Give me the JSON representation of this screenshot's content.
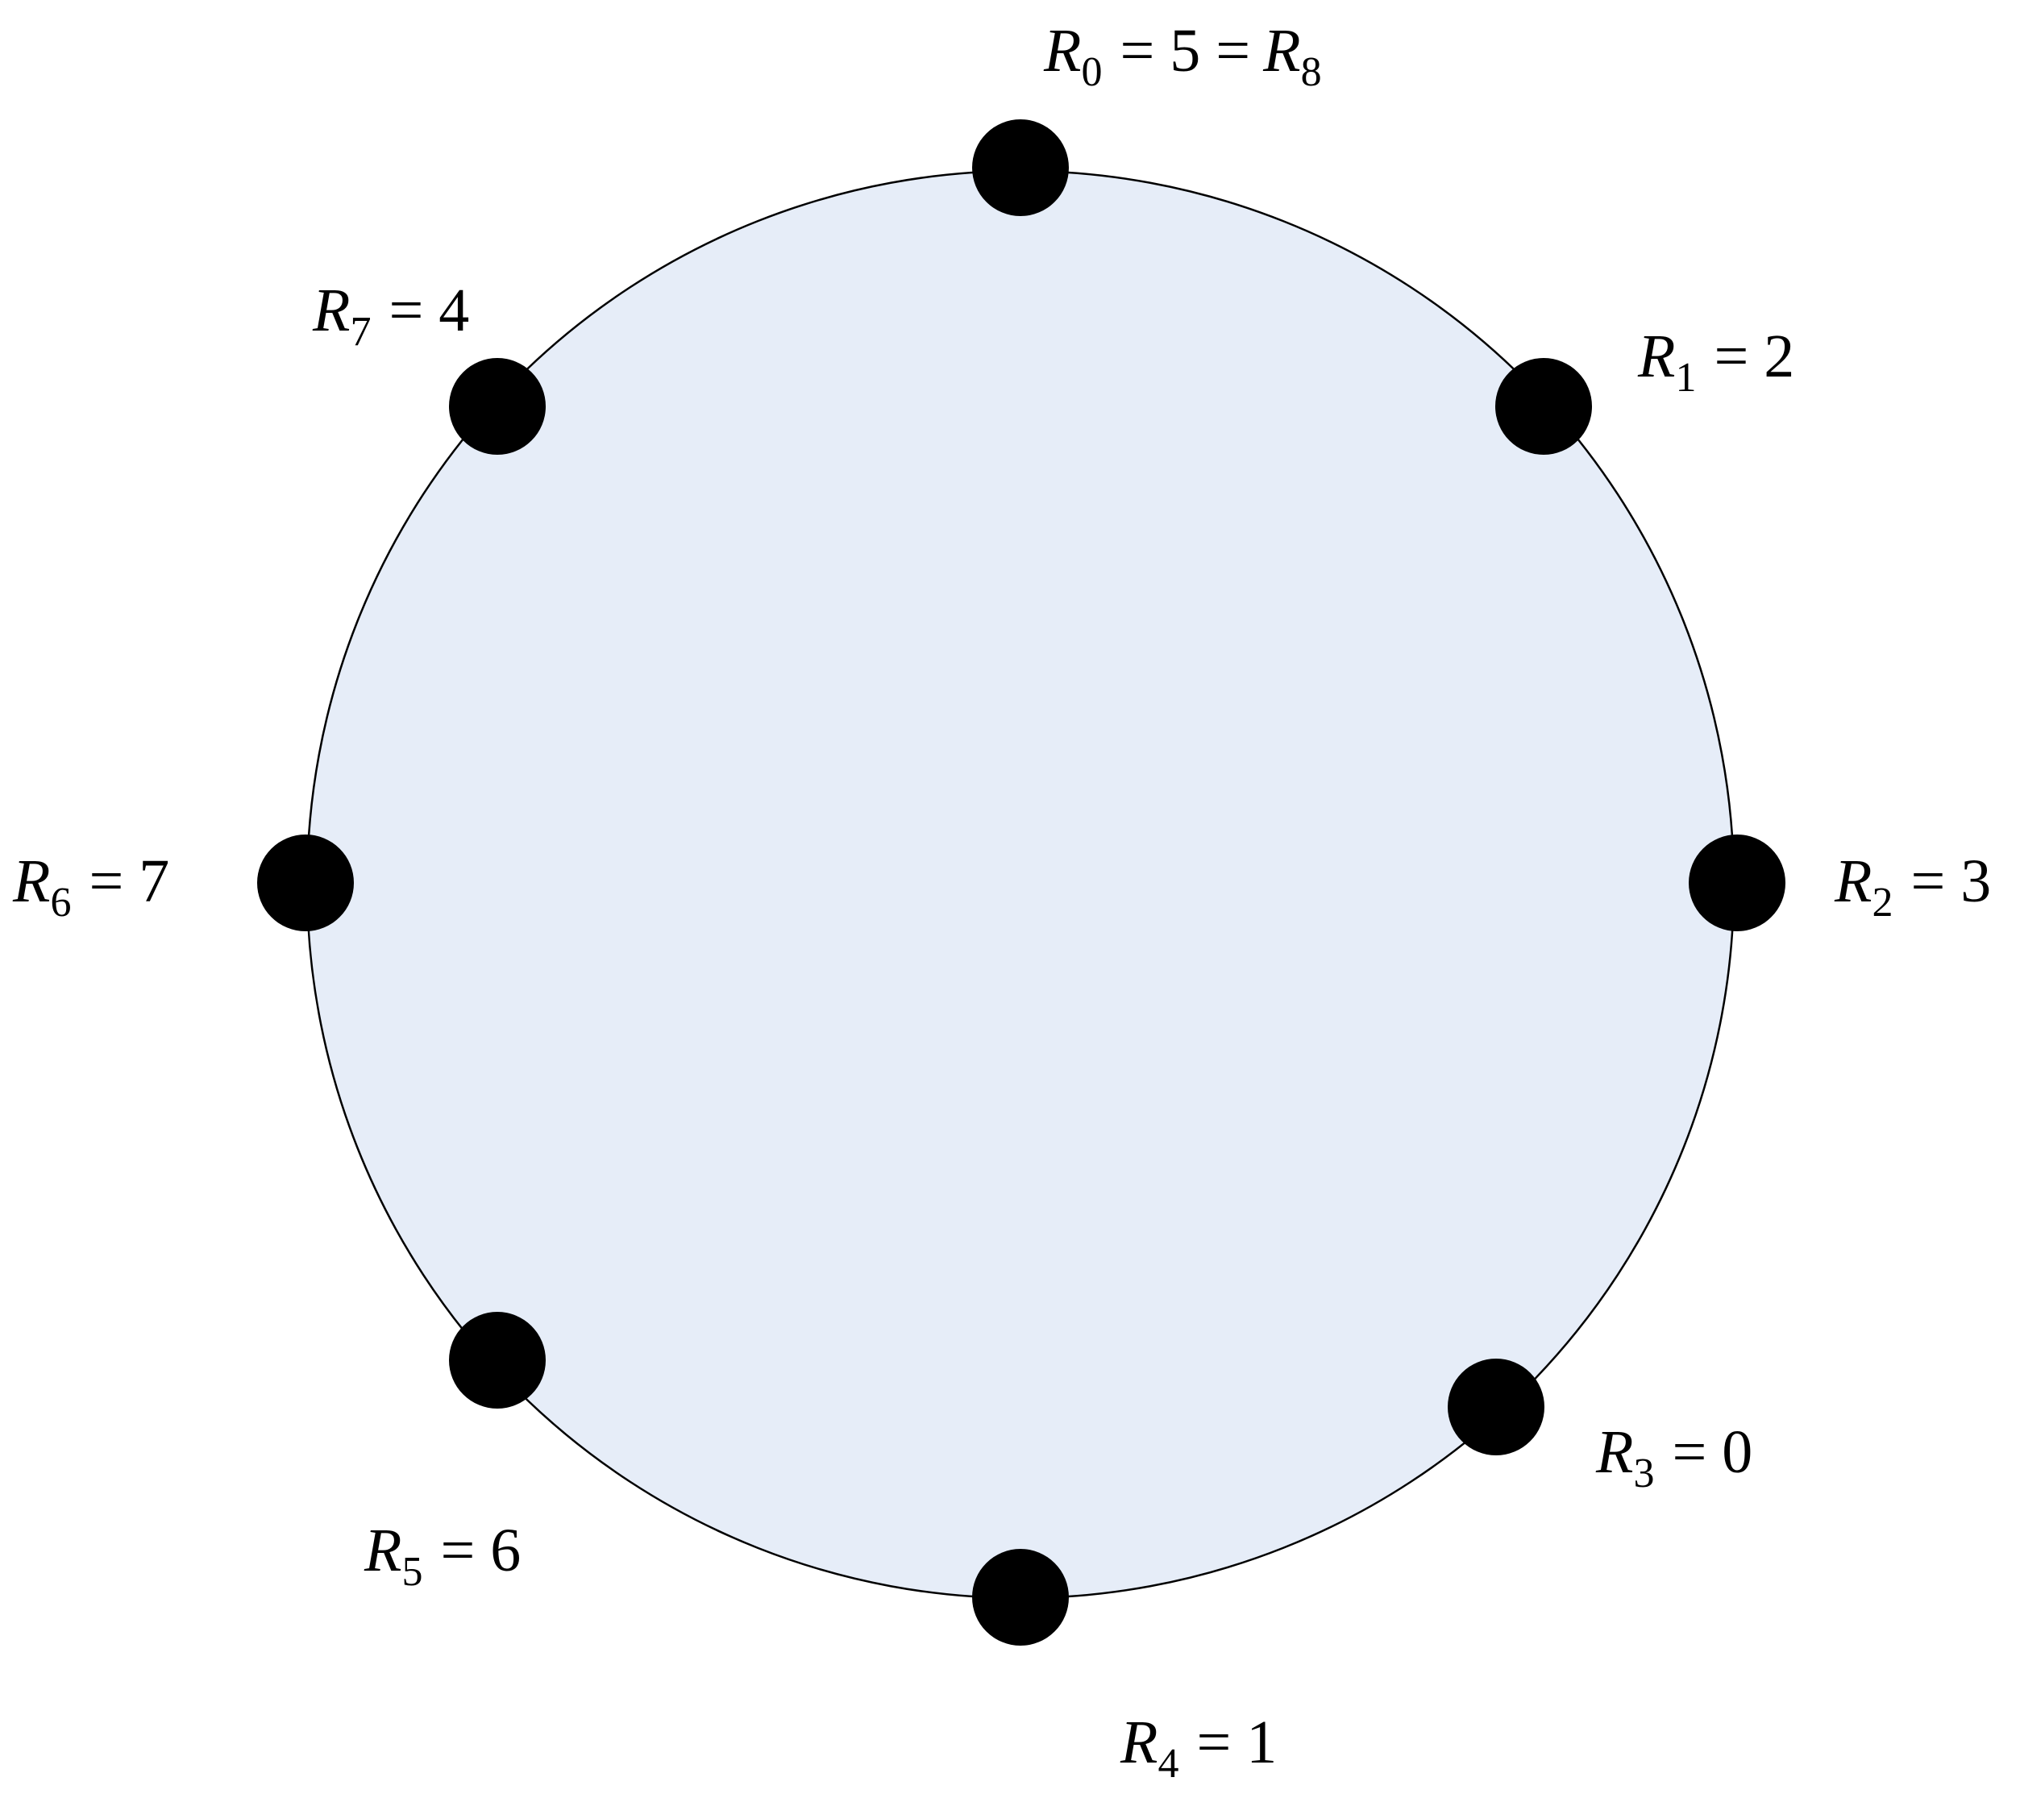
{
  "diagram": {
    "fill_color": "#e6edf8",
    "stroke_color": "#000000",
    "node_color": "#000000",
    "nodes": [
      {
        "var": "R",
        "sub": "0",
        "text": "= 5 =",
        "var2": "R",
        "sub2": "8"
      },
      {
        "var": "R",
        "sub": "1",
        "text": "= 2"
      },
      {
        "var": "R",
        "sub": "2",
        "text": "= 3"
      },
      {
        "var": "R",
        "sub": "3",
        "text": "= 0"
      },
      {
        "var": "R",
        "sub": "4",
        "text": "= 1"
      },
      {
        "var": "R",
        "sub": "5",
        "text": "= 6"
      },
      {
        "var": "R",
        "sub": "6",
        "text": "= 7"
      },
      {
        "var": "R",
        "sub": "7",
        "text": "= 4"
      }
    ]
  }
}
